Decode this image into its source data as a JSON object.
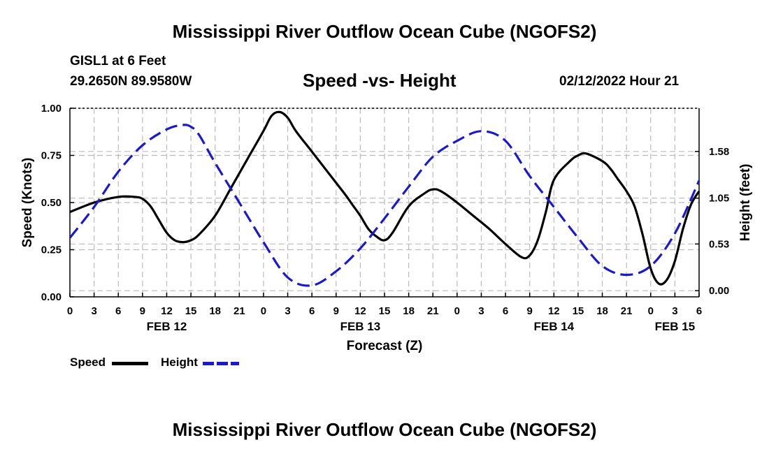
{
  "header": {
    "title": "Mississippi River Outflow Ocean Cube (NGOFS2)",
    "station": "GISL1 at 6 Feet",
    "coords": "29.2650N  89.9580W",
    "subtitle": "Speed -vs- Height",
    "datetime": "02/12/2022 Hour 21",
    "footer_title": "Mississippi River Outflow Ocean Cube (NGOFS2)"
  },
  "legend": {
    "speed_label": "Speed",
    "height_label": "Height"
  },
  "colors": {
    "speed": "#000000",
    "height": "#1a1acc",
    "grid": "#bbbbbb"
  },
  "chart_data": {
    "type": "line",
    "title": "Speed -vs- Height",
    "xlabel": "Forecast (Z)",
    "ylabel": "Speed (Knots)",
    "y2label": "Height (feet)",
    "xlim": [
      0,
      78
    ],
    "ylim": [
      0,
      1.0
    ],
    "y2lim": [
      -0.07,
      2.07
    ],
    "grid": true,
    "legend_position": "bottom-left",
    "x_ticks": [
      0,
      3,
      6,
      9,
      12,
      15,
      18,
      21,
      24,
      27,
      30,
      33,
      36,
      39,
      42,
      45,
      48,
      51,
      54,
      57,
      60,
      63,
      66,
      69,
      72,
      75,
      78
    ],
    "x_tick_labels": [
      "0",
      "3",
      "6",
      "9",
      "12",
      "15",
      "18",
      "21",
      "0",
      "3",
      "6",
      "9",
      "12",
      "15",
      "18",
      "21",
      "0",
      "3",
      "6",
      "9",
      "12",
      "15",
      "18",
      "21",
      "0",
      "3",
      "6"
    ],
    "date_labels": [
      {
        "x": 12,
        "label": "FEB 12"
      },
      {
        "x": 36,
        "label": "FEB 13"
      },
      {
        "x": 60,
        "label": "FEB 14"
      },
      {
        "x": 75,
        "label": "FEB 15"
      }
    ],
    "y_ticks": [
      0.0,
      0.25,
      0.5,
      0.75,
      1.0
    ],
    "y_tick_labels": [
      "0.00",
      "0.25",
      "0.50",
      "0.75",
      "1.00"
    ],
    "y2_ticks": [
      0.0,
      0.53,
      1.05,
      1.58
    ],
    "y2_tick_labels": [
      "0.00",
      "0.53",
      "1.05",
      "1.58"
    ],
    "series": [
      {
        "name": "Speed",
        "axis": "left",
        "style": "solid",
        "x": [
          0,
          3,
          6,
          8,
          9,
          10,
          11,
          12,
          13,
          14,
          15,
          16,
          18,
          20,
          22,
          24,
          25,
          26,
          27,
          28,
          30,
          32,
          34,
          35,
          36,
          37,
          38,
          39,
          40,
          42,
          44,
          45,
          46,
          48,
          50,
          52,
          54,
          56,
          57,
          58,
          59,
          60,
          62,
          63,
          64,
          66,
          67,
          68,
          69,
          70,
          71,
          72,
          73,
          74,
          75,
          76,
          77,
          78
        ],
        "values": [
          0.45,
          0.5,
          0.53,
          0.53,
          0.52,
          0.48,
          0.41,
          0.34,
          0.3,
          0.29,
          0.3,
          0.33,
          0.43,
          0.58,
          0.73,
          0.88,
          0.96,
          0.98,
          0.95,
          0.88,
          0.77,
          0.66,
          0.55,
          0.49,
          0.43,
          0.36,
          0.32,
          0.3,
          0.34,
          0.48,
          0.55,
          0.57,
          0.56,
          0.5,
          0.43,
          0.36,
          0.28,
          0.21,
          0.22,
          0.3,
          0.45,
          0.62,
          0.72,
          0.75,
          0.76,
          0.72,
          0.68,
          0.62,
          0.56,
          0.48,
          0.33,
          0.15,
          0.07,
          0.09,
          0.19,
          0.36,
          0.49,
          0.56
        ]
      },
      {
        "name": "Height",
        "axis": "right",
        "style": "dashed",
        "x": [
          0,
          3,
          6,
          9,
          12,
          14,
          15,
          16,
          18,
          21,
          24,
          27,
          30,
          33,
          36,
          39,
          42,
          45,
          48,
          51,
          54,
          57,
          60,
          63,
          66,
          69,
          72,
          75,
          78
        ],
        "values": [
          0.6,
          0.95,
          1.35,
          1.65,
          1.83,
          1.88,
          1.86,
          1.77,
          1.45,
          1.0,
          0.55,
          0.15,
          0.06,
          0.22,
          0.48,
          0.82,
          1.18,
          1.52,
          1.7,
          1.81,
          1.7,
          1.3,
          0.95,
          0.6,
          0.28,
          0.18,
          0.28,
          0.65,
          1.25
        ]
      }
    ]
  }
}
